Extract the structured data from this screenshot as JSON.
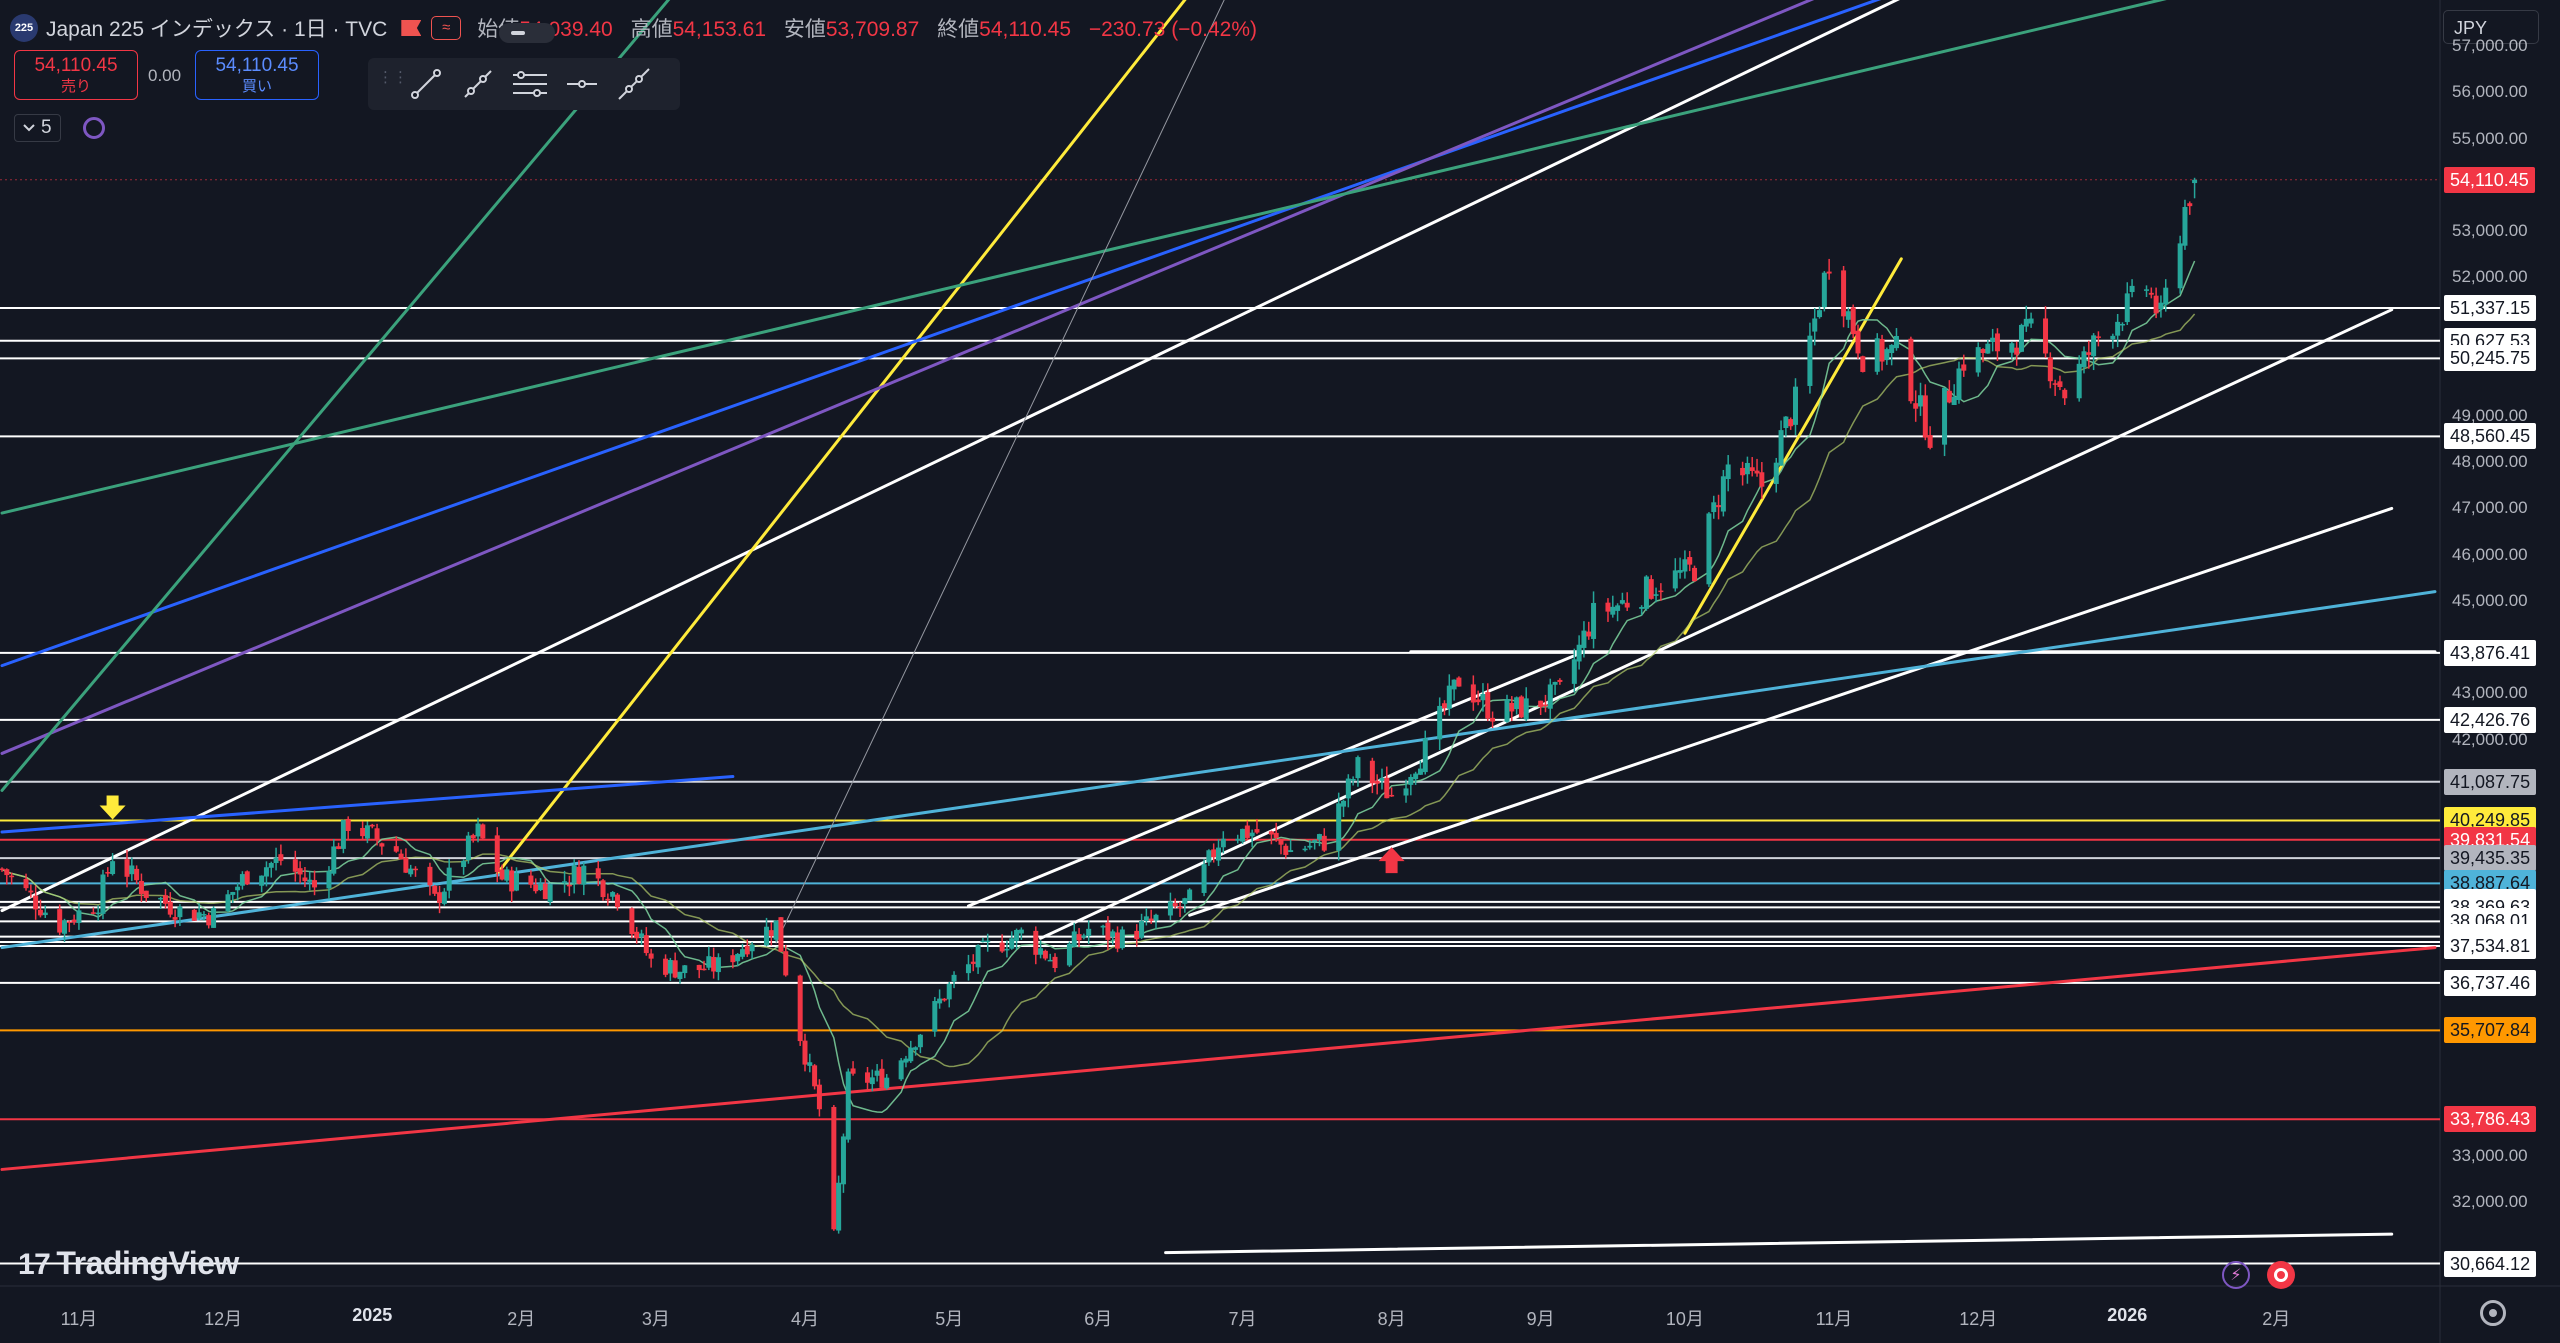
{
  "header": {
    "badge": "225",
    "symbol": "Japan 225 インデックス · 1日 · TVC",
    "open_label": "始値",
    "open": "54,039.40",
    "high_label": "高値",
    "high": "54,153.61",
    "low_label": "安値",
    "low": "53,709.87",
    "close_label": "終値",
    "close": "54,110.45",
    "change": "−230.73 (−0.42%)"
  },
  "trade": {
    "sell_price": "54,110.45",
    "sell_label": "売り",
    "spread": "0.00",
    "buy_price": "54,110.45",
    "buy_label": "買い"
  },
  "indicator_bar": {
    "count": "5"
  },
  "currency": "JPY",
  "logo": {
    "mark": "17",
    "name": "TradingView"
  },
  "icons": {
    "toolbar": [
      "trendline-icon",
      "ray-icon",
      "parallel-channel-icon",
      "horizontal-line-icon",
      "extended-line-icon"
    ]
  },
  "colors": {
    "background": "#131722",
    "up": "#26a69a",
    "down": "#f23645",
    "white_line": "#ffffff",
    "yellow": "#ffeb3b",
    "blue": "#2962ff",
    "purple": "#7e57c2",
    "teal": "#3ba27c",
    "cyan": "#4fb3d9",
    "red": "#f23645",
    "orange": "#ff9800"
  },
  "price_axis": {
    "ticks": [
      "57,000.00",
      "56,000.00",
      "55,000.00",
      "53,000.00",
      "52,000.00",
      "49,000.00",
      "48,000.00",
      "47,000.00",
      "46,000.00",
      "45,000.00",
      "43,000.00",
      "42,000.00",
      "33,000.00",
      "32,000.00"
    ],
    "current": {
      "label": "54,110.45",
      "price": 54110.45,
      "bg": "#f23645",
      "fg": "#ffffff"
    },
    "levels": [
      {
        "label": "51,337.15",
        "price": 51337.15,
        "bg": "#ffffff",
        "fg": "#131722",
        "line": "#ffffff"
      },
      {
        "label": "50,627.53",
        "price": 50627.53,
        "bg": "#ffffff",
        "fg": "#131722",
        "line": "#ffffff"
      },
      {
        "label": "50,245.75",
        "price": 50245.75,
        "bg": "#ffffff",
        "fg": "#131722",
        "line": "#ffffff"
      },
      {
        "label": "48,560.45",
        "price": 48560.45,
        "bg": "#ffffff",
        "fg": "#131722",
        "line": "#ffffff"
      },
      {
        "label": "43,876.41",
        "price": 43876.41,
        "bg": "#ffffff",
        "fg": "#131722",
        "line": "#ffffff"
      },
      {
        "label": "42,426.76",
        "price": 42426.76,
        "bg": "#ffffff",
        "fg": "#131722",
        "line": "#ffffff"
      },
      {
        "label": "41,087.75",
        "price": 41087.75,
        "bg": "#b2b5be",
        "fg": "#131722",
        "line": "#d1d4dc"
      },
      {
        "label": "40,249.85",
        "price": 40249.85,
        "bg": "#ffeb3b",
        "fg": "#131722",
        "line": "#ffeb3b"
      },
      {
        "label": "39,831.54",
        "price": 39831.54,
        "bg": "#f23645",
        "fg": "#ffffff",
        "line": "#f23645"
      },
      {
        "label": "39,435.35",
        "price": 39435.35,
        "bg": "#b2b5be",
        "fg": "#131722",
        "line": "#d1d4dc"
      },
      {
        "label": "38,887.64",
        "price": 38887.64,
        "bg": "#4fb3d9",
        "fg": "#131722",
        "line": "#4fb3d9"
      },
      {
        "label": "38,489.84",
        "price": 38489.84,
        "bg": "#ffffff",
        "fg": "#131722",
        "line": "#ffffff"
      },
      {
        "label": "38,369.63",
        "price": 38369.63,
        "bg": "#ffffff",
        "fg": "#131722",
        "line": "#ffffff"
      },
      {
        "label": "38,068.01",
        "price": 38068.01,
        "bg": "#ffffff",
        "fg": "#131722",
        "line": "#ffffff"
      },
      {
        "label": "37,736.04",
        "price": 37736.04,
        "bg": "#ffffff",
        "fg": "#131722",
        "line": "#ffffff"
      },
      {
        "label": "37,621.77",
        "price": 37621.77,
        "bg": "#ffffff",
        "fg": "#131722",
        "line": "#ffffff"
      },
      {
        "label": "37,534.81",
        "price": 37534.81,
        "bg": "#ffffff",
        "fg": "#131722",
        "line": "#ffffff"
      },
      {
        "label": "36,737.46",
        "price": 36737.46,
        "bg": "#ffffff",
        "fg": "#131722",
        "line": "#ffffff"
      },
      {
        "label": "35,707.84",
        "price": 35707.84,
        "bg": "#ff9800",
        "fg": "#131722",
        "line": "#ff9800"
      },
      {
        "label": "33,786.43",
        "price": 33786.43,
        "bg": "#f23645",
        "fg": "#ffffff",
        "line": "#f23645"
      },
      {
        "label": "30,664.12",
        "price": 30664.12,
        "bg": "#ffffff",
        "fg": "#131722",
        "line": "#ffffff"
      }
    ]
  },
  "time_axis": {
    "labels": [
      {
        "text": "11月",
        "bold": false,
        "date": "2024-11-01"
      },
      {
        "text": "12月",
        "bold": false,
        "date": "2024-12-01"
      },
      {
        "text": "2025",
        "bold": true,
        "date": "2025-01-01"
      },
      {
        "text": "2月",
        "bold": false,
        "date": "2025-02-01"
      },
      {
        "text": "3月",
        "bold": false,
        "date": "2025-03-01"
      },
      {
        "text": "4月",
        "bold": false,
        "date": "2025-04-01"
      },
      {
        "text": "5月",
        "bold": false,
        "date": "2025-05-01"
      },
      {
        "text": "6月",
        "bold": false,
        "date": "2025-06-01"
      },
      {
        "text": "7月",
        "bold": false,
        "date": "2025-07-01"
      },
      {
        "text": "8月",
        "bold": false,
        "date": "2025-08-01"
      },
      {
        "text": "9月",
        "bold": false,
        "date": "2025-09-01"
      },
      {
        "text": "10月",
        "bold": false,
        "date": "2025-10-01"
      },
      {
        "text": "11月",
        "bold": false,
        "date": "2025-11-01"
      },
      {
        "text": "12月",
        "bold": false,
        "date": "2025-12-01"
      },
      {
        "text": "2026",
        "bold": true,
        "date": "2026-01-01"
      },
      {
        "text": "2月",
        "bold": false,
        "date": "2026-02-01"
      }
    ]
  },
  "chart_data": {
    "type": "candlestick",
    "symbol": "Japan 225",
    "interval": "1D",
    "y_range": [
      30200,
      58000
    ],
    "x_range": [
      "2024-10-16",
      "2026-03-06"
    ],
    "close_path": [
      [
        "2024-10-16",
        39200
      ],
      [
        "2024-10-28",
        38000
      ],
      [
        "2024-11-05",
        38500
      ],
      [
        "2024-11-08",
        39500
      ],
      [
        "2024-11-15",
        38700
      ],
      [
        "2024-11-22",
        38300
      ],
      [
        "2024-11-29",
        38200
      ],
      [
        "2024-12-06",
        39100
      ],
      [
        "2024-12-13",
        39400
      ],
      [
        "2024-12-20",
        38800
      ],
      [
        "2024-12-27",
        40200
      ],
      [
        "2025-01-06",
        39600
      ],
      [
        "2025-01-14",
        38500
      ],
      [
        "2025-01-23",
        40000
      ],
      [
        "2025-01-28",
        39000
      ],
      [
        "2025-02-07",
        38800
      ],
      [
        "2025-02-14",
        39200
      ],
      [
        "2025-02-21",
        38600
      ],
      [
        "2025-02-28",
        37200
      ],
      [
        "2025-03-07",
        37000
      ],
      [
        "2025-03-14",
        37100
      ],
      [
        "2025-03-21",
        37700
      ],
      [
        "2025-03-26",
        38000
      ],
      [
        "2025-03-31",
        35600
      ],
      [
        "2025-04-04",
        34000
      ],
      [
        "2025-04-07",
        31200
      ],
      [
        "2025-04-10",
        34600
      ],
      [
        "2025-04-18",
        34700
      ],
      [
        "2025-04-25",
        35700
      ],
      [
        "2025-05-02",
        36800
      ],
      [
        "2025-05-09",
        37500
      ],
      [
        "2025-05-16",
        37800
      ],
      [
        "2025-05-23",
        37200
      ],
      [
        "2025-05-30",
        37900
      ],
      [
        "2025-06-06",
        37700
      ],
      [
        "2025-06-13",
        38100
      ],
      [
        "2025-06-20",
        38500
      ],
      [
        "2025-06-27",
        40000
      ],
      [
        "2025-07-04",
        40000
      ],
      [
        "2025-07-11",
        39600
      ],
      [
        "2025-07-18",
        39800
      ],
      [
        "2025-07-25",
        41400
      ],
      [
        "2025-08-01",
        40800
      ],
      [
        "2025-08-08",
        41800
      ],
      [
        "2025-08-15",
        43300
      ],
      [
        "2025-08-22",
        42600
      ],
      [
        "2025-08-29",
        42700
      ],
      [
        "2025-09-05",
        43000
      ],
      [
        "2025-09-12",
        44700
      ],
      [
        "2025-09-19",
        45000
      ],
      [
        "2025-09-26",
        45400
      ],
      [
        "2025-10-03",
        45700
      ],
      [
        "2025-10-10",
        47900
      ],
      [
        "2025-10-17",
        47500
      ],
      [
        "2025-10-24",
        49300
      ],
      [
        "2025-10-31",
        52400
      ],
      [
        "2025-11-07",
        50300
      ],
      [
        "2025-11-14",
        50400
      ],
      [
        "2025-11-21",
        48600
      ],
      [
        "2025-11-28",
        50200
      ],
      [
        "2025-12-05",
        50500
      ],
      [
        "2025-12-12",
        50800
      ],
      [
        "2025-12-19",
        49500
      ],
      [
        "2025-12-26",
        50700
      ],
      [
        "2026-01-05",
        51800
      ],
      [
        "2026-01-08",
        51100
      ],
      [
        "2026-01-13",
        53500
      ],
      [
        "2026-01-15",
        54110
      ]
    ],
    "last": {
      "open": 54039.4,
      "high": 54153.61,
      "low": 53709.87,
      "close": 54110.45
    },
    "annotations": [
      {
        "type": "arrow-down",
        "color": "#ffeb3b",
        "date": "2024-11-08",
        "price": 40400
      },
      {
        "type": "arrow-up",
        "color": "#f23645",
        "date": "2025-08-01",
        "price": 39500
      }
    ],
    "trendlines": [
      {
        "color": "#ffffff",
        "from": [
          "2024-10-16",
          38300
        ],
        "to": [
          "2025-11-20",
          58300
        ]
      },
      {
        "color": "#ffffff",
        "from": [
          "2025-05-05",
          38400
        ],
        "to": [
          "2025-09-10",
          43900
        ]
      },
      {
        "color": "#ffffff",
        "from": [
          "2025-05-20",
          37700
        ],
        "to": [
          "2026-02-25",
          51300
        ]
      },
      {
        "color": "#ffffff",
        "from": [
          "2025-06-20",
          38200
        ],
        "to": [
          "2026-02-25",
          47000
        ]
      },
      {
        "color": "#ffffff",
        "from": [
          "2025-06-15",
          30900
        ],
        "to": [
          "2026-02-25",
          31300
        ]
      },
      {
        "color": "#ffffff",
        "from": [
          "2025-08-05",
          43900
        ],
        "to": [
          "2026-03-06",
          43900
        ]
      },
      {
        "color": "#ffeb3b",
        "from": [
          "2025-01-27",
          39100
        ],
        "to": [
          "2025-06-22",
          58400
        ]
      },
      {
        "color": "#ffeb3b",
        "from": [
          "2025-10-01",
          44300
        ],
        "to": [
          "2025-11-15",
          52400
        ]
      },
      {
        "color": "#2962ff",
        "from": [
          "2024-10-16",
          43600
        ],
        "to": [
          "2025-11-18",
          58300
        ]
      },
      {
        "color": "#2962ff",
        "from": [
          "2024-10-16",
          40000
        ],
        "to": [
          "2025-03-17",
          41200
        ]
      },
      {
        "color": "#7e57c2",
        "from": [
          "2024-10-16",
          41700
        ],
        "to": [
          "2025-11-03",
          58300
        ]
      },
      {
        "color": "#3ba27c",
        "from": [
          "2024-10-16",
          46900
        ],
        "to": [
          "2026-01-20",
          58300
        ]
      },
      {
        "color": "#3ba27c",
        "from": [
          "2024-10-16",
          40900
        ],
        "to": [
          "2025-03-06",
          58300
        ]
      },
      {
        "color": "#4fb3d9",
        "from": [
          "2024-10-16",
          37500
        ],
        "to": [
          "2026-03-06",
          45200
        ]
      },
      {
        "color": "#f23645",
        "from": [
          "2024-10-16",
          32700
        ],
        "to": [
          "2026-03-06",
          37500
        ]
      },
      {
        "color": "#9598a1",
        "from": [
          "2025-03-26",
          37600
        ],
        "to": [
          "2025-06-29",
          58400
        ]
      }
    ]
  }
}
